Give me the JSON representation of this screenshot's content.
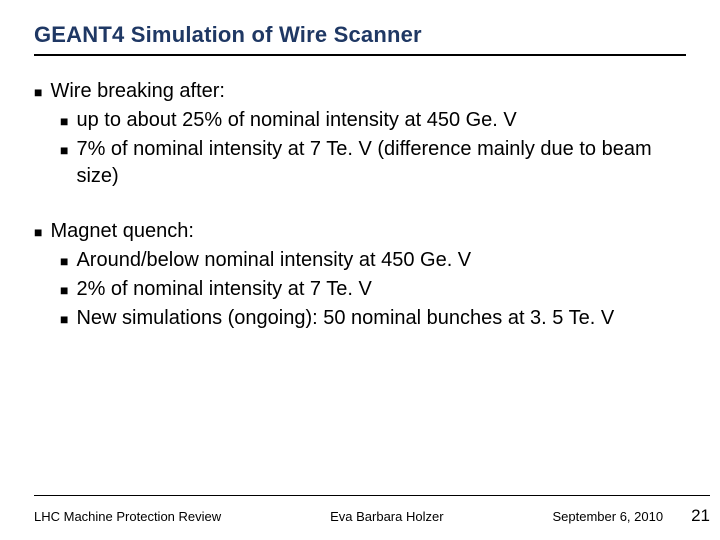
{
  "title": {
    "text": "GEANT4 Simulation of Wire Scanner",
    "color": "#1f3864",
    "fontsize": 22,
    "fontweight": "bold"
  },
  "body_fontsize": 20,
  "bullet_glyph": "■",
  "bullet_fontsize": 14,
  "sections": [
    {
      "heading": "Wire breaking after:",
      "items": [
        "up to about 25% of nominal intensity at 450 Ge. V",
        "7% of nominal intensity at 7 Te. V (difference mainly due to beam size)"
      ]
    },
    {
      "heading": "Magnet quench:",
      "items": [
        "Around/below nominal intensity at 450 Ge. V",
        "2% of nominal intensity at 7 Te. V",
        "New simulations (ongoing): 50 nominal bunches at 3. 5 Te. V"
      ]
    }
  ],
  "footer": {
    "left": "LHC Machine Protection Review",
    "center": "Eva Barbara Holzer",
    "date": "September 6, 2010",
    "page": "21",
    "fontsize": 13
  },
  "colors": {
    "background": "#ffffff",
    "text": "#000000",
    "rule": "#000000"
  }
}
